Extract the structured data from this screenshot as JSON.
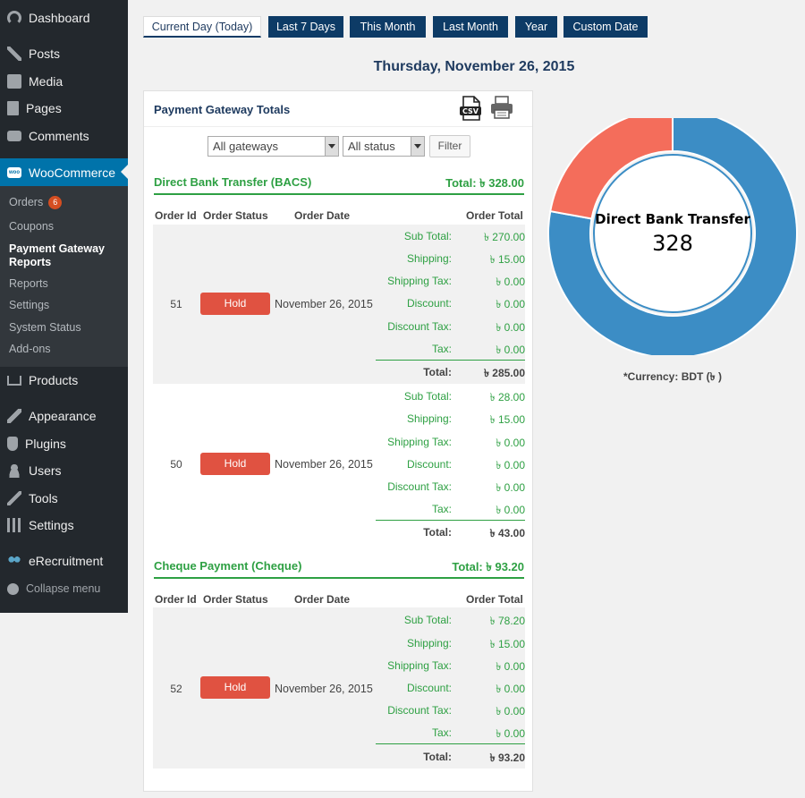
{
  "sidebar": {
    "items": [
      {
        "label": "Dashboard",
        "icon": "gauge-icon"
      },
      {
        "label": "Posts",
        "icon": "pin-icon"
      },
      {
        "label": "Media",
        "icon": "media-icon"
      },
      {
        "label": "Pages",
        "icon": "page-icon"
      },
      {
        "label": "Comments",
        "icon": "comment-icon"
      },
      {
        "label": "WooCommerce",
        "icon": "woo-icon"
      },
      {
        "label": "Products",
        "icon": "cart-icon"
      },
      {
        "label": "Appearance",
        "icon": "brush-icon"
      },
      {
        "label": "Plugins",
        "icon": "plug-icon"
      },
      {
        "label": "Users",
        "icon": "user-icon"
      },
      {
        "label": "Tools",
        "icon": "wrench-icon"
      },
      {
        "label": "Settings",
        "icon": "settings-icon"
      },
      {
        "label": "eRecruitment",
        "icon": "people-icon"
      },
      {
        "label": "Collapse menu",
        "icon": "collapse-icon"
      }
    ],
    "submenu": [
      {
        "label": "Orders",
        "badge": "6"
      },
      {
        "label": "Coupons"
      },
      {
        "label": "Payment Gateway Reports",
        "line1": "Payment Gateway",
        "line2": "Reports"
      },
      {
        "label": "Reports"
      },
      {
        "label": "Settings"
      },
      {
        "label": "System Status"
      },
      {
        "label": "Add-ons"
      }
    ]
  },
  "tabs": [
    "Current Day (Today)",
    "Last 7 Days",
    "This Month",
    "Last Month",
    "Year",
    "Custom Date"
  ],
  "date_heading": "Thursday, November 26, 2015",
  "panel": {
    "title": "Payment Gateway Totals",
    "csv_icon": "csv-icon",
    "print_icon": "printer-icon",
    "gateway_select": "All gateways",
    "status_select": "All status",
    "filter_label": "Filter"
  },
  "columns": {
    "order_id": "Order Id",
    "order_status": "Order Status",
    "order_date": "Order Date",
    "order_total": "Order Total"
  },
  "line_labels": {
    "sub_total": "Sub Total:",
    "shipping": "Shipping:",
    "shipping_tax": "Shipping Tax:",
    "discount": "Discount:",
    "discount_tax": "Discount Tax:",
    "tax": "Tax:",
    "total": "Total:"
  },
  "gateways": [
    {
      "name": "Direct Bank Transfer (BACS)",
      "total": "Total: ৳ 328.00",
      "orders": [
        {
          "id": "51",
          "status": "Hold",
          "date": "November 26, 2015",
          "sub_total": "৳ 270.00",
          "shipping": "৳ 15.00",
          "shipping_tax": "৳ 0.00",
          "discount": "৳ 0.00",
          "discount_tax": "৳ 0.00",
          "tax": "৳ 0.00",
          "total": "৳ 285.00"
        },
        {
          "id": "50",
          "status": "Hold",
          "date": "November 26, 2015",
          "sub_total": "৳ 28.00",
          "shipping": "৳ 15.00",
          "shipping_tax": "৳ 0.00",
          "discount": "৳ 0.00",
          "discount_tax": "৳ 0.00",
          "tax": "৳ 0.00",
          "total": "৳ 43.00"
        }
      ]
    },
    {
      "name": "Cheque Payment (Cheque)",
      "total": "Total: ৳ 93.20",
      "orders": [
        {
          "id": "52",
          "status": "Hold",
          "date": "November 26, 2015",
          "sub_total": "৳ 78.20",
          "shipping": "৳ 15.00",
          "shipping_tax": "৳ 0.00",
          "discount": "৳ 0.00",
          "discount_tax": "৳ 0.00",
          "tax": "৳ 0.00",
          "total": "৳ 93.20"
        }
      ]
    }
  ],
  "chart_data": {
    "type": "pie",
    "donut": true,
    "categories": [
      "Direct Bank Transfer",
      "Cheque Payment"
    ],
    "values": [
      328,
      93.2
    ],
    "colors": [
      "#3c8dc5",
      "#f46d5b"
    ],
    "center_label": "Direct Bank Transfer",
    "center_value": "328"
  },
  "currency_note": "*Currency:  BDT (৳ )"
}
